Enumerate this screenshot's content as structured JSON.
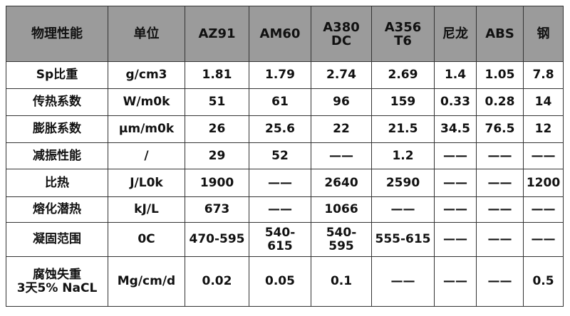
{
  "table": {
    "header": [
      "物理性能",
      "单位",
      "AZ91",
      "AM60",
      "A380\nDC",
      "A356\nT6",
      "尼龙",
      "ABS",
      "钢"
    ],
    "rows": [
      [
        "Sp比重",
        "g/cm3",
        "1.81",
        "1.79",
        "2.74",
        "2.69",
        "1.4",
        "1.05",
        "7.8"
      ],
      [
        "传热系数",
        "W/m0k",
        "51",
        "61",
        "96",
        "159",
        "0.33",
        "0.28",
        "14"
      ],
      [
        "膨胀系数",
        "μm/m0k",
        "26",
        "25.6",
        "22",
        "21.5",
        "34.5",
        "76.5",
        "12"
      ],
      [
        "减振性能",
        "/",
        "29",
        "52",
        "——",
        "1.2",
        "——",
        "——",
        "——"
      ],
      [
        "比热",
        "J/L0k",
        "1900",
        "——",
        "2640",
        "2590",
        "——",
        "——",
        "1200"
      ],
      [
        "熔化潜热",
        "kJ/L",
        "673",
        "——",
        "1066",
        "——",
        "——",
        "——",
        "——"
      ],
      [
        "凝固范围",
        "0C",
        "470-595",
        "540-\n615",
        "540-\n595",
        "555-615",
        "——",
        "——",
        "——"
      ],
      [
        "腐蚀失重\n3天5% NaCL",
        "Mg/cm/d",
        "0.02",
        "0.05",
        "0.1",
        "——",
        "——",
        "——",
        "0.5"
      ]
    ]
  }
}
